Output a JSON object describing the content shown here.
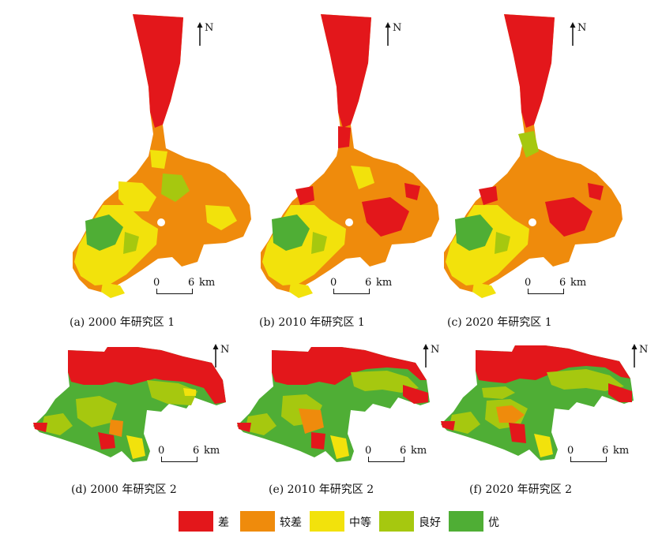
{
  "colors": {
    "poor": "#e3171b",
    "fair": "#ef8b0c",
    "medium": "#f2e20c",
    "good": "#a6c80f",
    "excellent": "#4fae35"
  },
  "north_label": "N",
  "scale_bar": {
    "zero": "0",
    "six": "6",
    "unit": "km"
  },
  "panels": [
    {
      "caption": "(a) 2000 年研究区 1"
    },
    {
      "caption": "(b) 2010 年研究区 1"
    },
    {
      "caption": "(c) 2020 年研究区 1"
    },
    {
      "caption": "(d) 2000 年研究区 2"
    },
    {
      "caption": "(e) 2010 年研究区 2"
    },
    {
      "caption": "(f) 2020 年研究区 2"
    }
  ],
  "legend": [
    {
      "label": "差",
      "color": "#e3171b"
    },
    {
      "label": "较差",
      "color": "#ef8b0c"
    },
    {
      "label": "中等",
      "color": "#f2e20c"
    },
    {
      "label": "良好",
      "color": "#a6c80f"
    },
    {
      "label": "优",
      "color": "#4fae35"
    }
  ]
}
